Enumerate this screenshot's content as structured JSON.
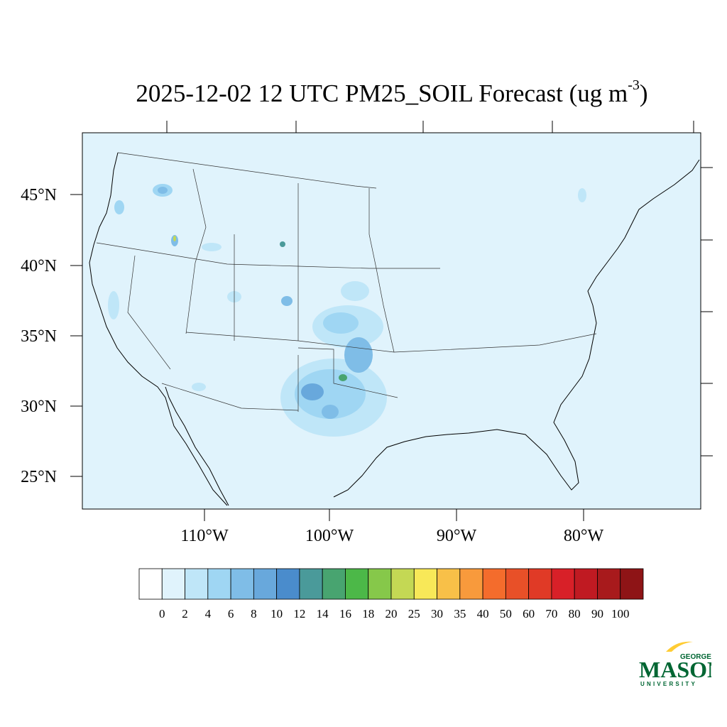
{
  "title": {
    "main": "2025-12-02 12 UTC PM25_SOIL Forecast (ug m",
    "sup": "-3",
    "close": ")"
  },
  "map": {
    "lat_labels": [
      "45°N",
      "40°N",
      "35°N",
      "30°N",
      "25°N"
    ],
    "lon_labels": [
      "110°W",
      "100°W",
      "90°W",
      "80°W"
    ],
    "colors": {
      "ocean": "#e0f3fc",
      "land": "#e0f3fc",
      "border": "#000000"
    }
  },
  "colorbar": {
    "labels": [
      "0",
      "2",
      "4",
      "6",
      "8",
      "10",
      "12",
      "14",
      "16",
      "18",
      "20",
      "25",
      "30",
      "35",
      "40",
      "50",
      "60",
      "70",
      "80",
      "90",
      "100"
    ],
    "colors": [
      "#ffffff",
      "#e0f3fc",
      "#bfe6f8",
      "#9fd6f3",
      "#7fbde7",
      "#68a8dc",
      "#4a8ccc",
      "#4a9a9a",
      "#48a470",
      "#4cb848",
      "#86c84a",
      "#c4d854",
      "#f8e858",
      "#f8c048",
      "#f89a3c",
      "#f46c2c",
      "#e85028",
      "#e03a26",
      "#d82028",
      "#c01a22",
      "#a81a1c",
      "#8e1416"
    ]
  },
  "logo": {
    "top": "GEORGE",
    "main": "MASON",
    "bottom": "UNIVERSITY",
    "color": "#006633",
    "accent": "#ffcc33"
  }
}
